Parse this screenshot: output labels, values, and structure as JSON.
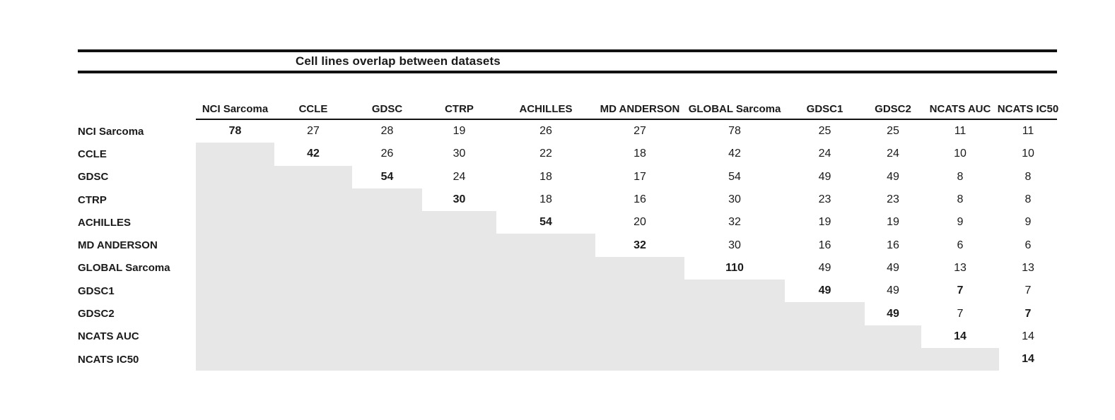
{
  "title": "Cell lines overlap between datasets",
  "colors": {
    "rule": "#111111",
    "shade": "#e7e7e7",
    "text": "#1a1a1a"
  },
  "chart_data": {
    "type": "table",
    "title": "Cell lines overlap between datasets",
    "description": "Upper-triangular pairwise overlap matrix; lower triangle shaded gray; diagonal values bold",
    "columns": [
      "NCI Sarcoma",
      "CCLE",
      "GDSC",
      "CTRP",
      "ACHILLES",
      "MD ANDERSON",
      "GLOBAL Sarcoma",
      "GDSC1",
      "GDSC2",
      "NCATS AUC",
      "NCATS IC50"
    ],
    "rows": [
      {
        "label": "NCI Sarcoma",
        "values": [
          78,
          27,
          28,
          19,
          26,
          27,
          78,
          25,
          25,
          11,
          11
        ],
        "bold_cols": [
          0
        ]
      },
      {
        "label": "CCLE",
        "values": [
          null,
          42,
          26,
          30,
          22,
          18,
          42,
          24,
          24,
          10,
          10
        ],
        "bold_cols": [
          1
        ]
      },
      {
        "label": "GDSC",
        "values": [
          null,
          null,
          54,
          24,
          18,
          17,
          54,
          49,
          49,
          8,
          8
        ],
        "bold_cols": [
          2
        ]
      },
      {
        "label": "CTRP",
        "values": [
          null,
          null,
          null,
          30,
          18,
          16,
          30,
          23,
          23,
          8,
          8
        ],
        "bold_cols": [
          3
        ]
      },
      {
        "label": "ACHILLES",
        "values": [
          null,
          null,
          null,
          null,
          54,
          20,
          32,
          19,
          19,
          9,
          9
        ],
        "bold_cols": [
          4
        ]
      },
      {
        "label": "MD ANDERSON",
        "values": [
          null,
          null,
          null,
          null,
          null,
          32,
          30,
          16,
          16,
          6,
          6
        ],
        "bold_cols": [
          5
        ]
      },
      {
        "label": "GLOBAL Sarcoma",
        "values": [
          null,
          null,
          null,
          null,
          null,
          null,
          110,
          49,
          49,
          13,
          13
        ],
        "bold_cols": [
          6
        ]
      },
      {
        "label": "GDSC1",
        "values": [
          null,
          null,
          null,
          null,
          null,
          null,
          null,
          49,
          49,
          7,
          7
        ],
        "bold_cols": [
          7,
          9
        ]
      },
      {
        "label": "GDSC2",
        "values": [
          null,
          null,
          null,
          null,
          null,
          null,
          null,
          null,
          49,
          7,
          7
        ],
        "bold_cols": [
          8,
          10
        ]
      },
      {
        "label": "NCATS AUC",
        "values": [
          null,
          null,
          null,
          null,
          null,
          null,
          null,
          null,
          null,
          14,
          14
        ],
        "bold_cols": [
          9
        ]
      },
      {
        "label": "NCATS IC50",
        "values": [
          null,
          null,
          null,
          null,
          null,
          null,
          null,
          null,
          null,
          null,
          14
        ],
        "bold_cols": [
          10
        ]
      }
    ],
    "shaded_region": "lower-triangle",
    "shade_color": "#e7e7e7",
    "legend_position": "none",
    "grid": false
  }
}
